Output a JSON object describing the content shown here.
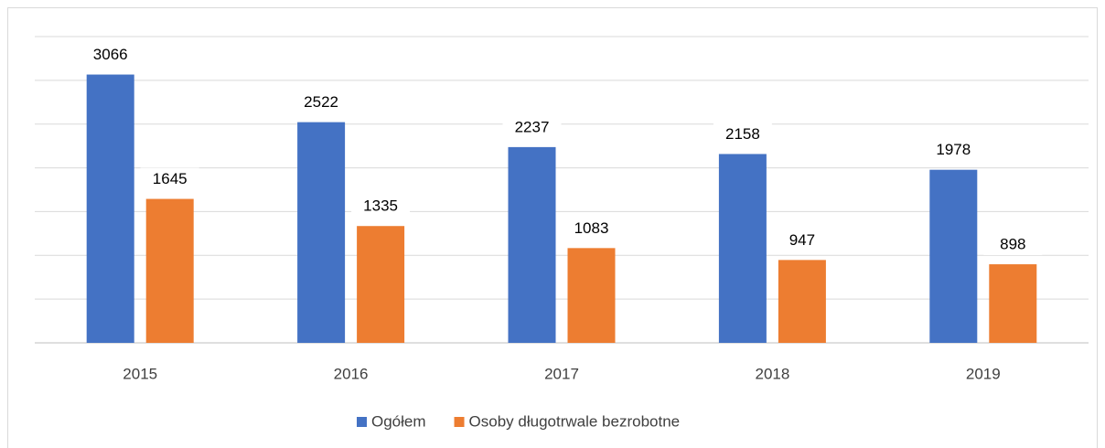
{
  "chart_data": {
    "type": "bar",
    "categories": [
      "2015",
      "2016",
      "2017",
      "2018",
      "2019"
    ],
    "series": [
      {
        "name": "Ogółem",
        "color": "#4472c4",
        "values": [
          3066,
          2522,
          2237,
          2158,
          1978
        ]
      },
      {
        "name": "Osoby długotrwale bezrobotne",
        "color": "#ed7d31",
        "values": [
          1645,
          1335,
          1083,
          947,
          898
        ]
      }
    ],
    "ylim": [
      0,
      3500
    ],
    "yticks": [
      0,
      500,
      1000,
      1500,
      2000,
      2500,
      3000,
      3500
    ],
    "grid": true,
    "legend": "bottom"
  }
}
